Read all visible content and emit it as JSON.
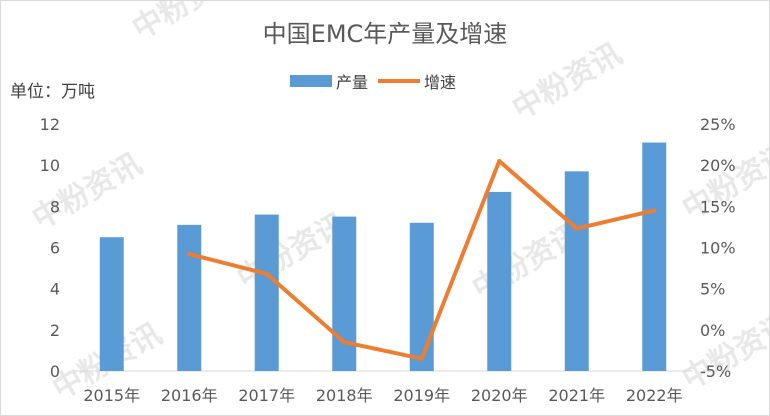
{
  "watermark": "中粉资讯",
  "chart_data": {
    "type": "bar+line",
    "title": "中国EMC年产量及增速",
    "unit_label": "单位：万吨",
    "categories": [
      "2015年",
      "2016年",
      "2017年",
      "2018年",
      "2019年",
      "2020年",
      "2021年",
      "2022年"
    ],
    "series": [
      {
        "name": "产量",
        "type": "bar",
        "axis": "left",
        "color": "#5b9bd5",
        "values": [
          6.5,
          7.1,
          7.6,
          7.5,
          7.2,
          8.7,
          9.7,
          11.1
        ]
      },
      {
        "name": "增速",
        "type": "line",
        "axis": "right",
        "color": "#ed7d31",
        "values": [
          null,
          9.2,
          6.8,
          -1.5,
          -3.5,
          20.5,
          12.3,
          14.5
        ]
      }
    ],
    "left_axis": {
      "ylim": [
        0,
        12
      ],
      "ticks": [
        "0",
        "2",
        "4",
        "6",
        "8",
        "10",
        "12"
      ]
    },
    "right_axis": {
      "ylim": [
        -5,
        25
      ],
      "ticks": [
        "-5%",
        "0%",
        "5%",
        "10%",
        "15%",
        "20%",
        "25%"
      ]
    },
    "legend_position": "top-center",
    "grid": false
  }
}
